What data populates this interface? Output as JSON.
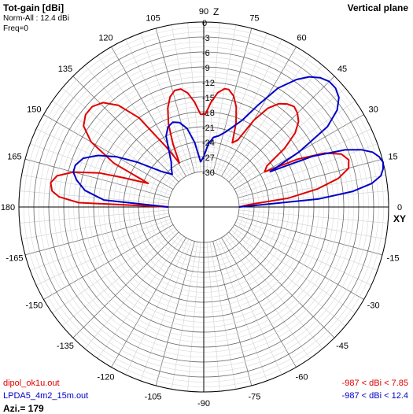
{
  "header": {
    "title": "Tot-gain [dBi]",
    "norm": "Norm-All : 12.4 dBi",
    "freq": "Freq=0",
    "plane": "Vertical plane"
  },
  "footer": {
    "azimuth": "Azi.= 179"
  },
  "chart_data": {
    "type": "polar",
    "title": "Tot-gain [dBi]",
    "r_unit": "dBi",
    "r_ticks": [
      "0",
      "-3",
      "-6",
      "-9",
      "-12",
      "-15",
      "-18",
      "-21",
      "-24",
      "-27",
      "-30"
    ],
    "r_range": [
      -30,
      0
    ],
    "angle_ticks": [
      {
        "deg": 0,
        "label": "0"
      },
      {
        "deg": 15,
        "label": "15"
      },
      {
        "deg": 30,
        "label": "30"
      },
      {
        "deg": 45,
        "label": "45"
      },
      {
        "deg": 60,
        "label": "60"
      },
      {
        "deg": 75,
        "label": "75"
      },
      {
        "deg": 90,
        "label": "90"
      },
      {
        "deg": 105,
        "label": "105"
      },
      {
        "deg": 120,
        "label": "120"
      },
      {
        "deg": 135,
        "label": "135"
      },
      {
        "deg": 150,
        "label": "150"
      },
      {
        "deg": 165,
        "label": "165"
      },
      {
        "deg": 180,
        "label": "180"
      },
      {
        "deg": -165,
        "label": "-165"
      },
      {
        "deg": -150,
        "label": "-150"
      },
      {
        "deg": -135,
        "label": "-135"
      },
      {
        "deg": -120,
        "label": "-120"
      },
      {
        "deg": -105,
        "label": "-105"
      },
      {
        "deg": -90,
        "label": "-90"
      },
      {
        "deg": -75,
        "label": "-75"
      },
      {
        "deg": -60,
        "label": "-60"
      },
      {
        "deg": -45,
        "label": "-45"
      },
      {
        "deg": -30,
        "label": "-30"
      },
      {
        "deg": -15,
        "label": "-15"
      }
    ],
    "axis_labels": {
      "top": "Z",
      "right": "XY"
    },
    "grid": true,
    "series": [
      {
        "name": "dipol_ok1u.out",
        "range_label": "-987 < dBi < 7.85",
        "color": "#e00000",
        "points": [
          [
            0,
            -30
          ],
          [
            3,
            -28
          ],
          [
            6,
            -20
          ],
          [
            9,
            -14
          ],
          [
            12,
            -9.5
          ],
          [
            15,
            -7
          ],
          [
            18,
            -6.5
          ],
          [
            21,
            -7.5
          ],
          [
            24,
            -10.5
          ],
          [
            27,
            -16
          ],
          [
            30,
            -23
          ],
          [
            33,
            -22
          ],
          [
            36,
            -17
          ],
          [
            39,
            -13.5
          ],
          [
            42,
            -11.5
          ],
          [
            45,
            -10.5
          ],
          [
            48,
            -10
          ],
          [
            51,
            -10.5
          ],
          [
            54,
            -11.5
          ],
          [
            57,
            -13.5
          ],
          [
            60,
            -17
          ],
          [
            63,
            -22
          ],
          [
            66,
            -23
          ],
          [
            69,
            -19
          ],
          [
            72,
            -16
          ],
          [
            75,
            -14
          ],
          [
            78,
            -13
          ],
          [
            80,
            -13
          ],
          [
            83,
            -14
          ],
          [
            86,
            -16
          ],
          [
            89,
            -18.5
          ],
          [
            92,
            -18.5
          ],
          [
            95,
            -16
          ],
          [
            98,
            -14
          ],
          [
            101,
            -13
          ],
          [
            104,
            -13
          ],
          [
            107,
            -14
          ],
          [
            110,
            -16
          ],
          [
            113,
            -19
          ],
          [
            116,
            -23
          ],
          [
            119,
            -27
          ],
          [
            122,
            -23
          ],
          [
            126,
            -15
          ],
          [
            130,
            -10.5
          ],
          [
            134,
            -8
          ],
          [
            138,
            -7
          ],
          [
            142,
            -7
          ],
          [
            146,
            -8
          ],
          [
            150,
            -11
          ],
          [
            154,
            -17
          ],
          [
            157,
            -25
          ],
          [
            160,
            -20
          ],
          [
            162,
            -15
          ],
          [
            165,
            -10
          ],
          [
            168,
            -7
          ],
          [
            171,
            -6
          ],
          [
            174,
            -6.5
          ],
          [
            176,
            -8
          ],
          [
            178,
            -12
          ],
          [
            180,
            -30
          ]
        ]
      },
      {
        "name": "LPDA5_4m2_15m.out",
        "range_label": "-987 < dBi < 12.4",
        "color": "#0000c8",
        "points": [
          [
            0,
            -30
          ],
          [
            2,
            -26
          ],
          [
            4,
            -14
          ],
          [
            6,
            -7
          ],
          [
            8,
            -3
          ],
          [
            10,
            -1
          ],
          [
            12,
            -0.3
          ],
          [
            14,
            0
          ],
          [
            16,
            -0.5
          ],
          [
            18,
            -1.5
          ],
          [
            20,
            -3.5
          ],
          [
            22,
            -6.5
          ],
          [
            25,
            -13
          ],
          [
            28,
            -22
          ],
          [
            30,
            -15
          ],
          [
            33,
            -7.5
          ],
          [
            36,
            -4
          ],
          [
            39,
            -2.2
          ],
          [
            42,
            -1.5
          ],
          [
            45,
            -1.5
          ],
          [
            48,
            -2.2
          ],
          [
            51,
            -3.5
          ],
          [
            54,
            -5.5
          ],
          [
            58,
            -9
          ],
          [
            62,
            -14
          ],
          [
            66,
            -18
          ],
          [
            70,
            -20
          ],
          [
            74,
            -21.5
          ],
          [
            78,
            -22.5
          ],
          [
            82,
            -23
          ],
          [
            86,
            -24.5
          ],
          [
            90,
            -27
          ],
          [
            94,
            -28
          ],
          [
            98,
            -24
          ],
          [
            102,
            -21
          ],
          [
            106,
            -19.5
          ],
          [
            110,
            -19
          ],
          [
            114,
            -19.5
          ],
          [
            118,
            -21
          ],
          [
            122,
            -24
          ],
          [
            126,
            -26
          ],
          [
            130,
            -27
          ],
          [
            134,
            -28
          ],
          [
            140,
            -26
          ],
          [
            146,
            -21
          ],
          [
            150,
            -17
          ],
          [
            154,
            -13.5
          ],
          [
            158,
            -11
          ],
          [
            162,
            -10
          ],
          [
            165,
            -10
          ],
          [
            168,
            -11
          ],
          [
            172,
            -13
          ],
          [
            176,
            -17
          ],
          [
            180,
            -30
          ]
        ]
      }
    ]
  }
}
